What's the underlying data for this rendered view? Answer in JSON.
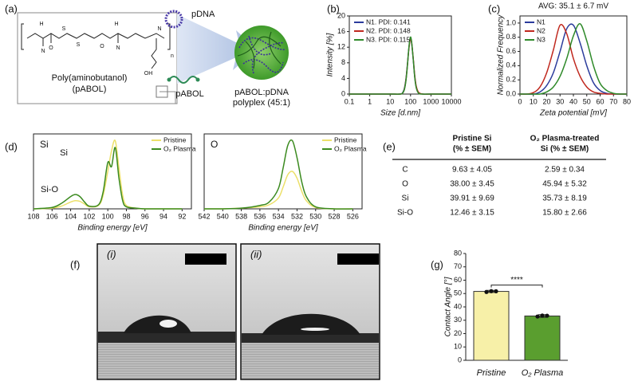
{
  "panel_labels": [
    "(a)",
    "(b)",
    "(c)",
    "(d)",
    "(e)",
    "(f)",
    "(g)"
  ],
  "diagram": {
    "polymer_name": "Poly(aminobutanol)",
    "polymer_abbrev": "(pABOL)",
    "atoms": [
      "H",
      "N",
      "S",
      "S",
      "H",
      "N",
      "O",
      "O",
      "N",
      "OH",
      "n"
    ],
    "pdna_label": "pDNA",
    "pabol_label": "pABOL",
    "product_label": "pABOL:pDNA",
    "product_sub": "polyplex (45:1)"
  },
  "chart_data": [
    {
      "type": "line",
      "x_label": "Size [d.nm]",
      "y_label": "Intensity [%]",
      "xscale": "log",
      "x": [
        0.1,
        1,
        10,
        30,
        40,
        50,
        60,
        70,
        80,
        90,
        100,
        110,
        120,
        140,
        160,
        190,
        250,
        400,
        1000,
        10000
      ],
      "xlim": [
        0.1,
        10000
      ],
      "xticks": [
        0.1,
        1,
        10,
        100,
        1000,
        10000
      ],
      "ylim": [
        0,
        20
      ],
      "yticks": [
        0,
        4,
        8,
        12,
        16,
        20
      ],
      "legend": "upper left",
      "series": [
        {
          "name": "N1. PDI: 0.141",
          "color": "#2b3c9c",
          "values": [
            0,
            0,
            0,
            0,
            0.3,
            1.5,
            4,
            7.5,
            11,
            13.3,
            14.2,
            13.5,
            11.8,
            8,
            4.5,
            1.8,
            0.3,
            0,
            0,
            0
          ]
        },
        {
          "name": "N2. PDI: 0.148",
          "color": "#c0281e",
          "values": [
            0,
            0,
            0,
            0,
            0.2,
            1.3,
            3.8,
            7.3,
            10.8,
            13.1,
            14.1,
            13.6,
            12,
            8.3,
            4.8,
            2,
            0.4,
            0,
            0,
            0
          ]
        },
        {
          "name": "N3. PDI: 0.115",
          "color": "#2f8a2a",
          "values": [
            0,
            0,
            0,
            0,
            0.2,
            1.2,
            3.6,
            7.2,
            11,
            13.6,
            14.6,
            13.8,
            12,
            8,
            4.3,
            1.6,
            0.2,
            0,
            0,
            0
          ]
        }
      ]
    },
    {
      "type": "line",
      "title": "AVG: 35.1 ± 6.7 mV",
      "x_label": "Zeta potential [mV]",
      "y_label": "Normalized Frequency",
      "x": [
        0,
        5,
        10,
        15,
        20,
        25,
        30,
        35,
        40,
        45,
        50,
        55,
        60,
        65,
        70,
        75,
        80
      ],
      "xlim": [
        0,
        80
      ],
      "xticks": [
        0,
        10,
        20,
        30,
        40,
        50,
        60,
        70,
        80
      ],
      "ylim": [
        0,
        1.1
      ],
      "yticks": [
        {
          "value": 0,
          "label": "0.0"
        },
        0.2,
        0.4,
        0.6,
        0.8,
        {
          "value": 1,
          "label": "1.0"
        }
      ],
      "legend": "upper left",
      "series": [
        {
          "name": "N1",
          "color": "#2b3c9c",
          "values": [
            0,
            0,
            0,
            0.03,
            0.12,
            0.3,
            0.6,
            0.92,
            0.97,
            0.72,
            0.4,
            0.16,
            0.05,
            0.01,
            0,
            0,
            0
          ]
        },
        {
          "name": "N2",
          "color": "#c0281e",
          "values": [
            0,
            0,
            0.02,
            0.1,
            0.3,
            0.62,
            0.97,
            0.85,
            0.5,
            0.25,
            0.1,
            0.03,
            0.01,
            0,
            0,
            0,
            0
          ]
        },
        {
          "name": "N3",
          "color": "#2f8a2a",
          "values": [
            0,
            0,
            0,
            0,
            0.03,
            0.1,
            0.25,
            0.5,
            0.82,
            0.99,
            0.75,
            0.4,
            0.15,
            0.05,
            0.01,
            0,
            0
          ]
        }
      ]
    },
    {
      "type": "line",
      "panel_label": "Si",
      "annotations": [
        "Si",
        "Si-O"
      ],
      "x_label": "Binding energy [eV]",
      "x": [
        108,
        106,
        105,
        104,
        103.5,
        103,
        102.5,
        102,
        101,
        100.5,
        100,
        99.6,
        99.2,
        98.8,
        98.4,
        98,
        97,
        96,
        94,
        92
      ],
      "xlim": [
        108,
        91
      ],
      "xticks": [
        108,
        106,
        104,
        102,
        100,
        98,
        96,
        94,
        92
      ],
      "ylim": [
        0,
        1.1
      ],
      "legend": "upper right",
      "series": [
        {
          "name": "Pristine",
          "color": "#ece06a",
          "values": [
            0,
            0.01,
            0.04,
            0.1,
            0.12,
            0.11,
            0.07,
            0.03,
            0.05,
            0.2,
            0.55,
            0.85,
            1.0,
            0.6,
            0.2,
            0.05,
            0.01,
            0,
            0,
            0
          ]
        },
        {
          "name": "O₂ Plasma",
          "color": "#3b8a1f",
          "values": [
            0,
            0.02,
            0.08,
            0.18,
            0.21,
            0.18,
            0.1,
            0.04,
            0.06,
            0.25,
            0.68,
            0.62,
            0.9,
            0.45,
            0.12,
            0.03,
            0.01,
            0,
            0,
            0
          ]
        }
      ]
    },
    {
      "type": "line",
      "panel_label": "O",
      "x_label": "Binding energy [eV]",
      "x": [
        542,
        540,
        538,
        536,
        535,
        534,
        533.5,
        533,
        532.5,
        532,
        531.5,
        531,
        530,
        528,
        526
      ],
      "xlim": [
        542,
        525
      ],
      "xticks": [
        542,
        540,
        538,
        536,
        534,
        532,
        530,
        528,
        526
      ],
      "ylim": [
        0,
        1.1
      ],
      "legend": "upper right",
      "series": [
        {
          "name": "Pristine",
          "color": "#ece06a",
          "values": [
            0,
            0,
            0.01,
            0.03,
            0.06,
            0.16,
            0.32,
            0.5,
            0.55,
            0.45,
            0.26,
            0.12,
            0.02,
            0,
            0
          ]
        },
        {
          "name": "O₂ Plasma",
          "color": "#3b8a1f",
          "values": [
            0,
            0,
            0.01,
            0.05,
            0.1,
            0.3,
            0.6,
            0.93,
            1.0,
            0.75,
            0.4,
            0.18,
            0.03,
            0,
            0
          ]
        }
      ]
    },
    {
      "type": "bar",
      "y_label": "Contact Angle [°]",
      "categories": [
        "Pristine",
        "O₂ Plasma"
      ],
      "values": [
        51.6,
        33.2
      ],
      "errors": [
        0.8,
        1.0
      ],
      "points": [
        [
          51.2,
          51.8,
          51.7
        ],
        [
          32.8,
          33.5,
          33.4
        ]
      ],
      "colors": [
        "#f7f0a8",
        "#5a9e2f"
      ],
      "ylim": [
        0,
        80
      ],
      "yticks": [
        0,
        10,
        20,
        30,
        40,
        50,
        60,
        70,
        80
      ],
      "annotation": "****"
    }
  ],
  "table": {
    "header": [
      [
        "Pristine Si",
        "(% ± SEM)"
      ],
      [
        "O₂ Plasma-treated",
        "Si (% ± SEM)"
      ]
    ],
    "rows": [
      [
        "C",
        "9.63 ± 4.05",
        "2.59 ± 0.34"
      ],
      [
        "O",
        "38.00 ± 3.45",
        "45.94 ± 5.32"
      ],
      [
        "Si",
        "39.91 ± 9.69",
        "35.73 ± 8.19"
      ],
      [
        "Si-O",
        "12.46 ± 3.15",
        "15.80 ± 2.66"
      ]
    ]
  },
  "images": {
    "labels": [
      "(i)",
      "(ii)"
    ]
  }
}
